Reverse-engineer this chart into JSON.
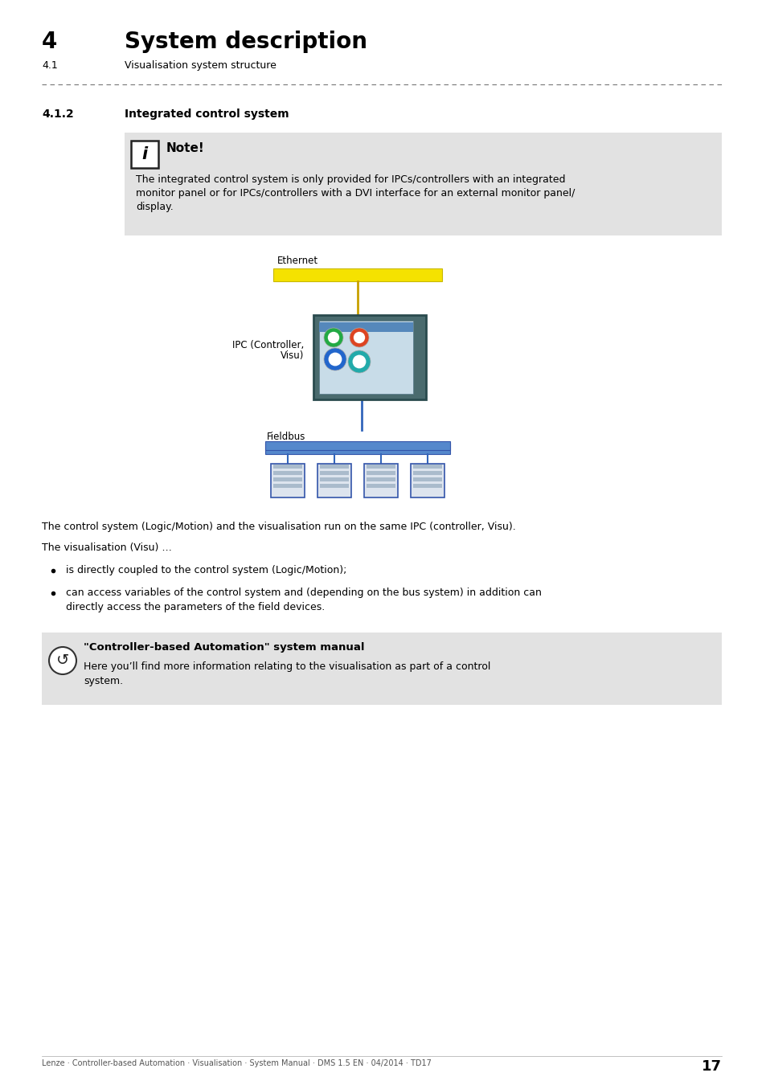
{
  "bg_color": "#ffffff",
  "header_number": "4",
  "header_title": "System description",
  "header_sub_number": "4.1",
  "header_sub_title": "Visualisation system structure",
  "section_number": "4.1.2",
  "section_title": "Integrated control system",
  "note_bg": "#e2e2e2",
  "note_title": "Note!",
  "note_line1": "The integrated control system is only provided for IPCs/controllers with an integrated",
  "note_line2": "monitor panel or for IPCs/controllers with a DVI interface for an external monitor panel/",
  "note_line3": "display.",
  "ethernet_label": "Ethernet",
  "ethernet_bar_color": "#f5e200",
  "ethernet_bar_border": "#c8b800",
  "ipc_label_line1": "IPC (Controller,",
  "ipc_label_line2": "Visu)",
  "fieldbus_label": "Fieldbus",
  "fieldbus_bar_color": "#5588cc",
  "fieldbus_bar_border": "#3355aa",
  "para1": "The control system (Logic/Motion) and the visualisation run on the same IPC (controller, Visu).",
  "para2": "The visualisation (Visu) …",
  "bullet1": "is directly coupled to the control system (Logic/Motion);",
  "bullet2a": "can access variables of the control system and (depending on the bus system) in addition can",
  "bullet2b": "directly access the parameters of the field devices.",
  "ref_bg": "#e2e2e2",
  "ref_title": "\"Controller-based Automation\" system manual",
  "ref_line1": "Here you’ll find more information relating to the visualisation as part of a control",
  "ref_line2": "system.",
  "footer_text": "Lenze · Controller-based Automation · Visualisation · System Manual · DMS 1.5 EN · 04/2014 · TD17",
  "footer_page": "17",
  "dash_color": "#777777",
  "title_fs": 20,
  "sub_title_fs": 9,
  "section_num_fs": 10,
  "section_title_fs": 10,
  "note_title_fs": 11,
  "body_fs": 9,
  "diag_label_fs": 8.5,
  "footer_fs": 7
}
